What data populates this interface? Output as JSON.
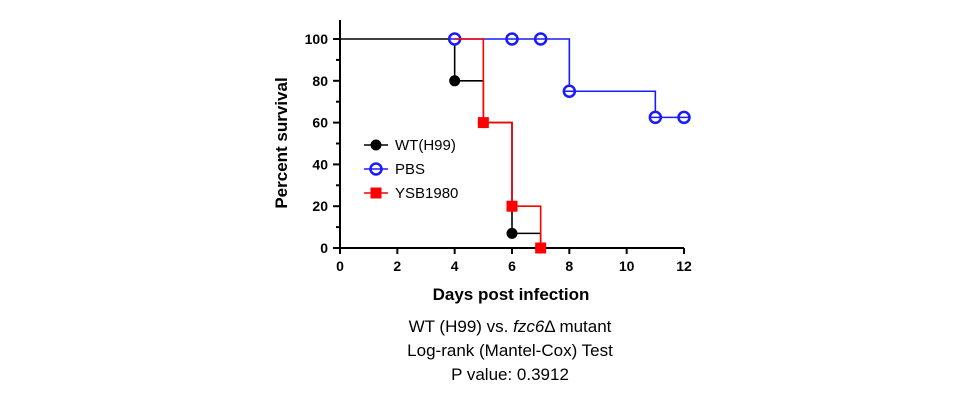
{
  "chart_data": {
    "type": "line",
    "step": true,
    "xlabel": "Days post infection",
    "ylabel": "Percent survival",
    "xlim": [
      0,
      12
    ],
    "ylim": [
      0,
      100
    ],
    "x_ticks": [
      0,
      2,
      4,
      6,
      8,
      10,
      12
    ],
    "y_ticks": [
      0,
      20,
      40,
      60,
      80,
      100
    ],
    "legend_position": "left-middle",
    "series": [
      {
        "name": "WT(H99)",
        "color": "#000000",
        "marker": "filled-circle",
        "steps": [
          [
            0,
            100
          ],
          [
            4,
            100
          ],
          [
            4,
            80
          ],
          [
            5,
            80
          ],
          [
            5,
            60
          ],
          [
            6,
            60
          ],
          [
            6,
            7
          ],
          [
            7,
            7
          ],
          [
            7,
            0
          ]
        ],
        "markers": [
          [
            4,
            80
          ],
          [
            5,
            60
          ],
          [
            6,
            7
          ],
          [
            7,
            0
          ]
        ]
      },
      {
        "name": "PBS",
        "color": "#1a1aff",
        "marker": "open-circle",
        "steps": [
          [
            4,
            100
          ],
          [
            8,
            100
          ],
          [
            8,
            75
          ],
          [
            11,
            75
          ],
          [
            11,
            62.5
          ],
          [
            12,
            62.5
          ]
        ],
        "markers": [
          [
            4,
            100
          ],
          [
            6,
            100
          ],
          [
            7,
            100
          ],
          [
            8,
            75
          ],
          [
            11,
            62.5
          ],
          [
            12,
            62.5
          ]
        ]
      },
      {
        "name": "YSB1980",
        "color": "#ff0000",
        "marker": "filled-square",
        "steps": [
          [
            4,
            100
          ],
          [
            5,
            100
          ],
          [
            5,
            60
          ],
          [
            6,
            60
          ],
          [
            6,
            20
          ],
          [
            7,
            20
          ],
          [
            7,
            0
          ]
        ],
        "markers": [
          [
            5,
            60
          ],
          [
            6,
            20
          ],
          [
            7,
            0
          ]
        ]
      }
    ]
  },
  "caption": {
    "line1_prefix": "WT (H99) vs. ",
    "line1_italic": "fzc6",
    "line1_suffix": "Δ mutant",
    "line2": "Log-rank (Mantel-Cox) Test",
    "line3": "P value: 0.3912"
  }
}
